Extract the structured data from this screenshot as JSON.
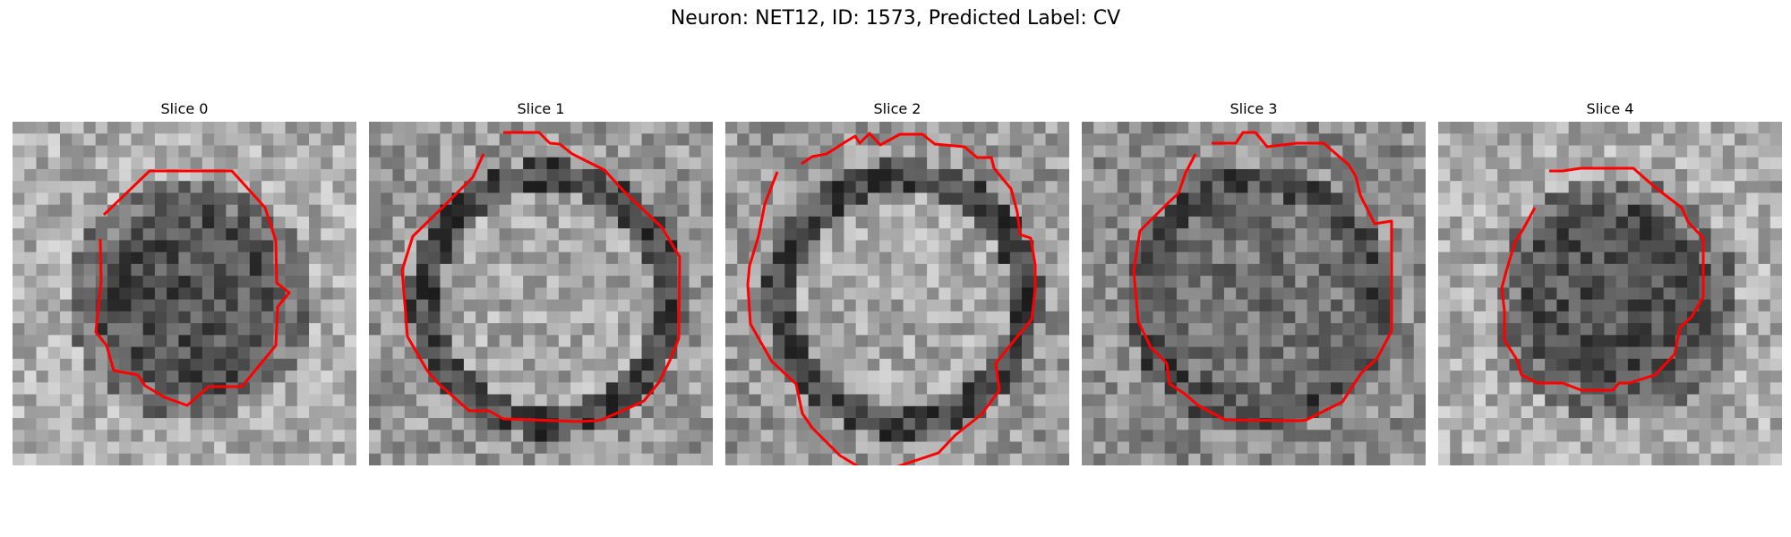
{
  "figure": {
    "title": "Neuron: NET12, ID: 1573, Predicted Label: CV"
  },
  "slices": [
    {
      "title": "Slice 0",
      "interior": "dark",
      "seed": 11
    },
    {
      "title": "Slice 1",
      "interior": "light",
      "seed": 23
    },
    {
      "title": "Slice 2",
      "interior": "light",
      "seed": 37
    },
    {
      "title": "Slice 3",
      "interior": "mixed",
      "seed": 41
    },
    {
      "title": "Slice 4",
      "interior": "dark",
      "seed": 53
    }
  ],
  "colors": {
    "contour": "#ff0000"
  }
}
